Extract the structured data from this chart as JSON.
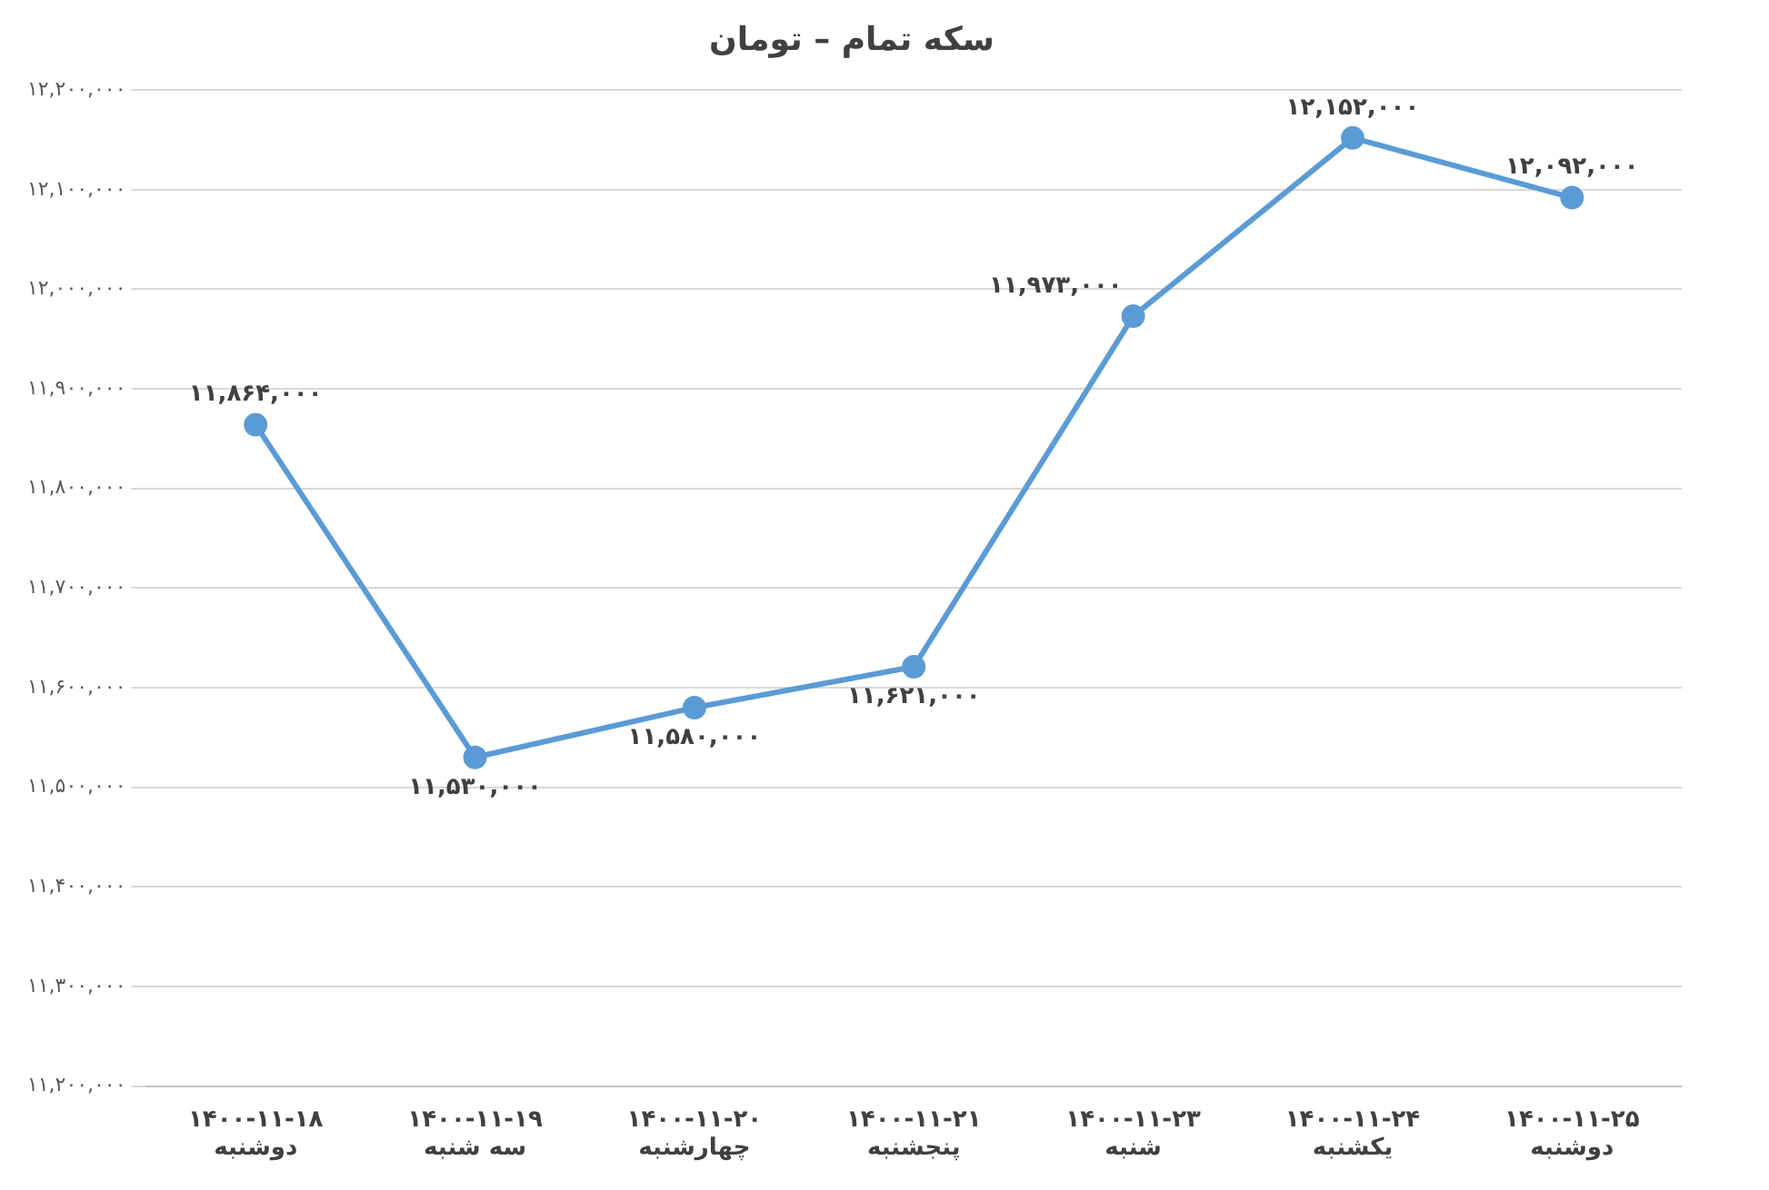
{
  "chart_data": {
    "type": "line",
    "title": "سکه تمام – تومان",
    "categories": [
      "۱۴۰۰-۱۱-۱۸\nدوشنبه",
      "۱۴۰۰-۱۱-۱۹\nسه شنبه",
      "۱۴۰۰-۱۱-۲۰\nچهارشنبه",
      "۱۴۰۰-۱۱-۲۱\nپنجشنبه",
      "۱۴۰۰-۱۱-۲۳\nشنبه",
      "۱۴۰۰-۱۱-۲۴\nیکشنبه",
      "۱۴۰۰-۱۱-۲۵\nدوشنبه"
    ],
    "values": [
      11864000,
      11530000,
      11580000,
      11621000,
      11973000,
      12152000,
      12092000
    ],
    "value_labels": [
      "۱۱,۸۶۴,۰۰۰",
      "۱۱,۵۳۰,۰۰۰",
      "۱۱,۵۸۰,۰۰۰",
      "۱۱,۶۲۱,۰۰۰",
      "۱۱,۹۷۳,۰۰۰",
      "۱۲,۱۵۲,۰۰۰",
      "۱۲,۰۹۲,۰۰۰"
    ],
    "color": "#5b9bd5",
    "marker": "circle",
    "line_style": "solid",
    "grid": "y",
    "legend": false,
    "ylim": [
      11200000,
      12200000
    ],
    "yticks": [
      {
        "value": 11200000,
        "label": "۱۱,۲۰۰,۰۰۰"
      },
      {
        "value": 11300000,
        "label": "۱۱,۳۰۰,۰۰۰"
      },
      {
        "value": 11400000,
        "label": "۱۱,۴۰۰,۰۰۰"
      },
      {
        "value": 11500000,
        "label": "۱۱,۵۰۰,۰۰۰"
      },
      {
        "value": 11600000,
        "label": "۱۱,۶۰۰,۰۰۰"
      },
      {
        "value": 11700000,
        "label": "۱۱,۷۰۰,۰۰۰"
      },
      {
        "value": 11800000,
        "label": "۱۱,۸۰۰,۰۰۰"
      },
      {
        "value": 11900000,
        "label": "۱۱,۹۰۰,۰۰۰"
      },
      {
        "value": 12000000,
        "label": "۱۲,۰۰۰,۰۰۰"
      },
      {
        "value": 12100000,
        "label": "۱۲,۱۰۰,۰۰۰"
      },
      {
        "value": 12200000,
        "label": "۱۲,۲۰۰,۰۰۰"
      }
    ]
  }
}
